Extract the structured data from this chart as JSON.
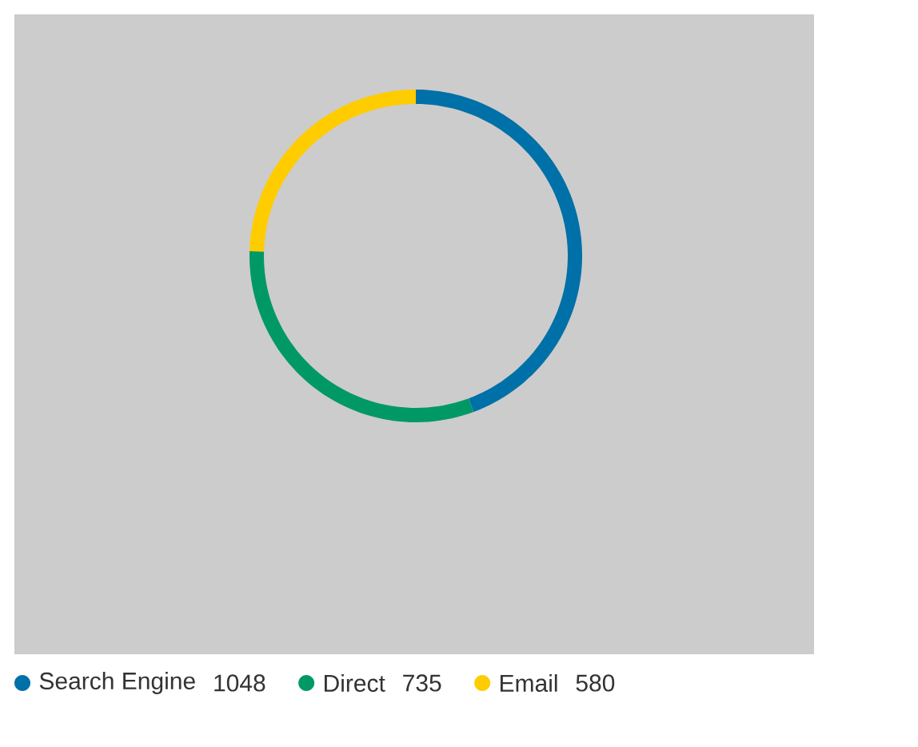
{
  "chart_data": {
    "type": "donut",
    "categories": [
      "Search Engine",
      "Direct",
      "Email"
    ],
    "values": [
      1048,
      735,
      580
    ],
    "colors": [
      "#0070a8",
      "#009966",
      "#ffcc00"
    ],
    "data_labels": true,
    "legend": "bottom"
  }
}
